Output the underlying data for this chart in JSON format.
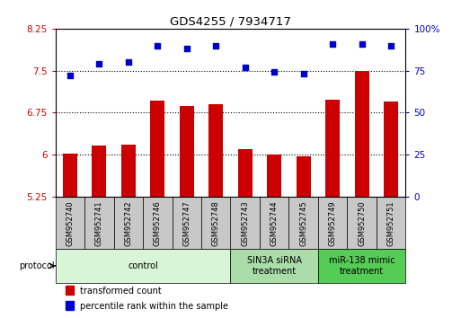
{
  "title": "GDS4255 / 7934717",
  "samples": [
    "GSM952740",
    "GSM952741",
    "GSM952742",
    "GSM952746",
    "GSM952747",
    "GSM952748",
    "GSM952743",
    "GSM952744",
    "GSM952745",
    "GSM952749",
    "GSM952750",
    "GSM952751"
  ],
  "transformed_count": [
    6.02,
    6.16,
    6.17,
    6.97,
    6.86,
    6.89,
    6.09,
    6.0,
    5.97,
    6.98,
    7.5,
    6.95
  ],
  "percentile_rank": [
    72,
    79,
    80,
    90,
    88,
    90,
    77,
    74,
    73,
    91,
    91,
    90
  ],
  "ylim_left": [
    5.25,
    8.25
  ],
  "ylim_right": [
    0,
    100
  ],
  "yticks_left": [
    5.25,
    6.0,
    6.75,
    7.5,
    8.25
  ],
  "yticks_right": [
    0,
    25,
    50,
    75,
    100
  ],
  "ytick_labels_left": [
    "5.25",
    "6",
    "6.75",
    "7.5",
    "8.25"
  ],
  "ytick_labels_right": [
    "0",
    "25",
    "50",
    "75",
    "100%"
  ],
  "bar_color": "#cc0000",
  "dot_color": "#0000cc",
  "bar_width": 0.5,
  "groups": [
    {
      "label": "control",
      "start": 0,
      "end": 6,
      "color": "#d8f5d8"
    },
    {
      "label": "SIN3A siRNA\ntreatment",
      "start": 6,
      "end": 9,
      "color": "#aaddaa"
    },
    {
      "label": "miR-138 mimic\ntreatment",
      "start": 9,
      "end": 12,
      "color": "#55cc55"
    }
  ],
  "legend_items": [
    {
      "color": "#cc0000",
      "label": "transformed count"
    },
    {
      "color": "#0000cc",
      "label": "percentile rank within the sample"
    }
  ],
  "tick_label_color_left": "#cc0000",
  "tick_label_color_right": "#0000cc",
  "sample_box_color": "#c8c8c8",
  "protocol_label": "protocol"
}
